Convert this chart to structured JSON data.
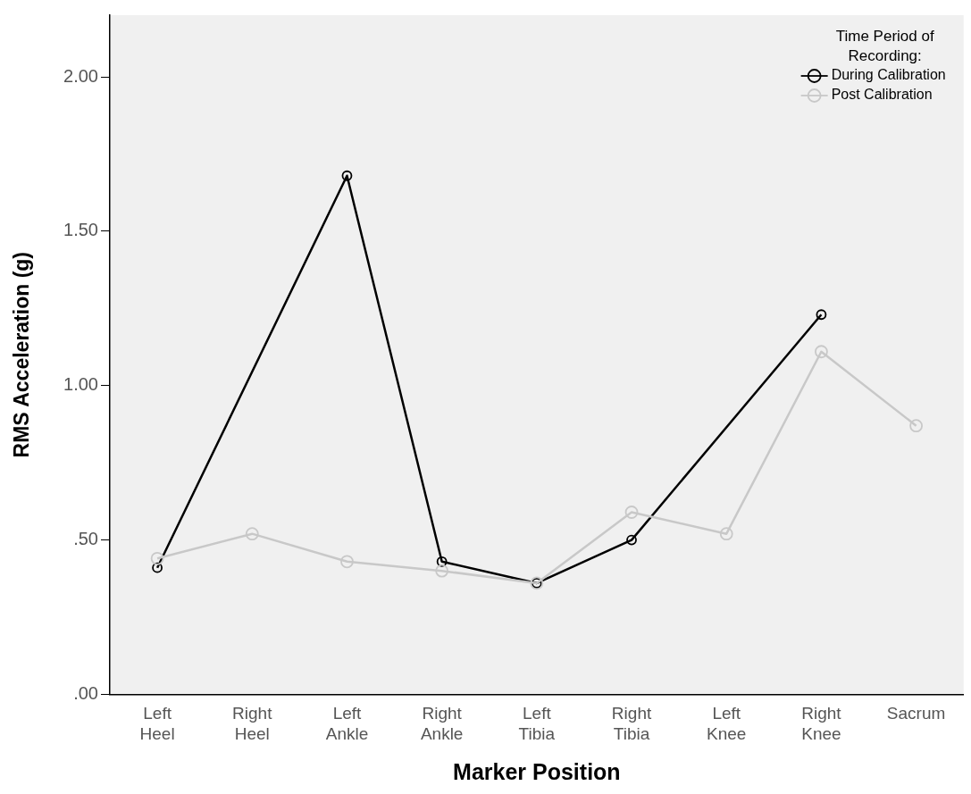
{
  "chart_data": {
    "type": "line",
    "xlabel": "Marker Position",
    "ylabel": "RMS Acceleration (g)",
    "legend_title": "Time Period of Recording:",
    "categories": [
      "Left Heel",
      "Right Heel",
      "Left Ankle",
      "Right Ankle",
      "Left Tibia",
      "Right Tibia",
      "Left Knee",
      "Right Knee",
      "Sacrum"
    ],
    "series": [
      {
        "name": "During Calibration",
        "color": "#000000",
        "values": [
          0.41,
          null,
          1.68,
          0.43,
          0.36,
          0.5,
          null,
          1.23,
          null
        ]
      },
      {
        "name": "Post Calibration",
        "color": "#c8c8c8",
        "values": [
          0.44,
          0.52,
          0.43,
          0.4,
          0.36,
          0.59,
          0.52,
          1.11,
          0.87
        ]
      }
    ],
    "ylim": [
      0,
      2.2
    ],
    "yticks": [
      {
        "value": 0,
        "label": ".00"
      },
      {
        "value": 0.5,
        "label": ".50"
      },
      {
        "value": 1,
        "label": "1.00"
      },
      {
        "value": 1.5,
        "label": "1.50"
      },
      {
        "value": 2,
        "label": "2.00"
      }
    ],
    "grid": false,
    "legend": "top right",
    "marker": "circle",
    "line_style": "solid"
  }
}
